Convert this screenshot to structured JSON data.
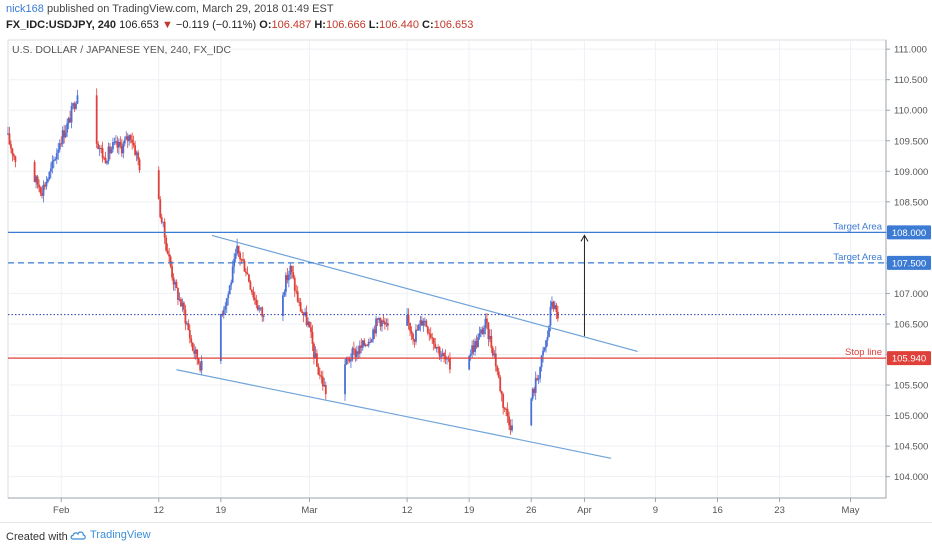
{
  "header": {
    "author": "nick168",
    "published_text": "published on TradingView.com, March 29, 2018 01:49 EST",
    "symbol": "FX_IDC:USDJPY, 240",
    "last_price": "106.653",
    "change_arrow": "▼",
    "change": "−0.119 (−0.11%)",
    "o_label": "O:",
    "o_value": "106.487",
    "h_label": "H:",
    "h_value": "106.666",
    "l_label": "L:",
    "l_value": "106.440",
    "c_label": "C:",
    "c_value": "106.653"
  },
  "footer": {
    "created_with": "Created with",
    "brand": "TradingView"
  },
  "colors": {
    "up": "#4a6fd6",
    "down": "#e0403a",
    "trendline": "#6fa3d9",
    "target": "#3b7bd4",
    "stop": "#e0403a",
    "price_line": "#2a3fb0",
    "grid": "#eef1f5"
  },
  "chart_data": {
    "type": "candlestick",
    "title": "U.S. DOLLAR / JAPANESE YEN, 240, FX_IDC",
    "ylim": [
      103.65,
      111.15
    ],
    "y_ticks": [
      "111.000",
      "110.500",
      "110.000",
      "109.500",
      "109.000",
      "108.500",
      "108.000",
      "107.500",
      "107.000",
      "106.500",
      "106.000",
      "105.500",
      "105.000",
      "104.500",
      "104.000"
    ],
    "y_tick_values": [
      111.0,
      110.5,
      110.0,
      109.5,
      109.0,
      108.5,
      108.0,
      107.5,
      107.0,
      106.5,
      106.0,
      105.5,
      105.0,
      104.5,
      104.0
    ],
    "x_ticks": [
      {
        "label": "Feb",
        "date": "2018-02-01"
      },
      {
        "label": "12",
        "date": "2018-02-12"
      },
      {
        "label": "19",
        "date": "2018-02-19"
      },
      {
        "label": "Mar",
        "date": "2018-03-01"
      },
      {
        "label": "12",
        "date": "2018-03-12"
      },
      {
        "label": "19",
        "date": "2018-03-19"
      },
      {
        "label": "26",
        "date": "2018-03-26"
      },
      {
        "label": "Apr",
        "date": "2018-04-01"
      },
      {
        "label": "9",
        "date": "2018-04-09"
      },
      {
        "label": "16",
        "date": "2018-04-16"
      },
      {
        "label": "23",
        "date": "2018-04-23"
      },
      {
        "label": "May",
        "date": "2018-05-01"
      }
    ],
    "horizontal_levels": [
      {
        "label": "Target Area",
        "value": 108.0,
        "price_label": "108.000",
        "style": "solid",
        "color": "#3b7bd4"
      },
      {
        "label": "Target Area",
        "value": 107.5,
        "price_label": "107.500",
        "style": "dashed",
        "color": "#3b7bd4"
      },
      {
        "label": "Stop line",
        "value": 105.94,
        "price_label": "105.940",
        "style": "solid",
        "color": "#e0403a"
      }
    ],
    "current_price": {
      "value": 106.653,
      "style": "dotted",
      "color": "#2a3fb0"
    },
    "trendlines": [
      {
        "from": {
          "date": "2018-02-18",
          "price": 107.95
        },
        "to": {
          "date": "2018-04-07",
          "price": 106.05
        }
      },
      {
        "from": {
          "date": "2018-02-14",
          "price": 105.75
        },
        "to": {
          "date": "2018-04-04",
          "price": 104.3
        }
      }
    ],
    "arrow": {
      "from": {
        "date": "2018-04-01",
        "price": 106.3
      },
      "to": {
        "date": "2018-04-01",
        "price": 107.95
      }
    },
    "series_path": [
      [
        "2018-01-26",
        109.6
      ],
      [
        "2018-01-27",
        109.2
      ],
      [
        "2018-01-28",
        108.6
      ],
      [
        "2018-01-29",
        108.9
      ],
      [
        "2018-01-30",
        108.7
      ],
      [
        "2018-01-31",
        109.0
      ],
      [
        "2018-02-01",
        109.5
      ],
      [
        "2018-02-02",
        109.8
      ],
      [
        "2018-02-03",
        110.3
      ],
      [
        "2018-02-04",
        110.1
      ],
      [
        "2018-02-05",
        109.6
      ],
      [
        "2018-02-06",
        109.2
      ],
      [
        "2018-02-07",
        109.4
      ],
      [
        "2018-02-08",
        109.4
      ],
      [
        "2018-02-09",
        109.6
      ],
      [
        "2018-02-10",
        109.1
      ],
      [
        "2018-02-11",
        108.7
      ],
      [
        "2018-02-12",
        108.6
      ],
      [
        "2018-02-13",
        107.8
      ],
      [
        "2018-02-14",
        107.1
      ],
      [
        "2018-02-15",
        106.7
      ],
      [
        "2018-02-16",
        106.1
      ],
      [
        "2018-02-17",
        105.8
      ],
      [
        "2018-02-18",
        106.3
      ],
      [
        "2018-02-19",
        106.6
      ],
      [
        "2018-02-20",
        107.0
      ],
      [
        "2018-02-21",
        107.7
      ],
      [
        "2018-02-22",
        107.4
      ],
      [
        "2018-02-23",
        106.9
      ],
      [
        "2018-02-24",
        106.6
      ],
      [
        "2018-02-25",
        106.7
      ],
      [
        "2018-02-26",
        107.0
      ],
      [
        "2018-02-27",
        107.4
      ],
      [
        "2018-02-28",
        106.8
      ],
      [
        "2018-03-01",
        106.5
      ],
      [
        "2018-03-02",
        105.8
      ],
      [
        "2018-03-03",
        105.4
      ],
      [
        "2018-03-04",
        105.5
      ],
      [
        "2018-03-05",
        105.8
      ],
      [
        "2018-03-06",
        106.0
      ],
      [
        "2018-03-07",
        106.1
      ],
      [
        "2018-03-08",
        106.3
      ],
      [
        "2018-03-09",
        106.6
      ],
      [
        "2018-03-10",
        106.4
      ],
      [
        "2018-03-11",
        106.8
      ],
      [
        "2018-03-12",
        106.6
      ],
      [
        "2018-03-13",
        106.3
      ],
      [
        "2018-03-14",
        106.6
      ],
      [
        "2018-03-15",
        106.3
      ],
      [
        "2018-03-16",
        106.0
      ],
      [
        "2018-03-17",
        105.8
      ],
      [
        "2018-03-18",
        105.9
      ],
      [
        "2018-03-19",
        106.0
      ],
      [
        "2018-03-20",
        106.2
      ],
      [
        "2018-03-21",
        106.5
      ],
      [
        "2018-03-22",
        106.0
      ],
      [
        "2018-03-23",
        105.2
      ],
      [
        "2018-03-24",
        104.8
      ],
      [
        "2018-03-25",
        104.8
      ],
      [
        "2018-03-26",
        105.2
      ],
      [
        "2018-03-27",
        105.7
      ],
      [
        "2018-03-28",
        106.3
      ],
      [
        "2018-03-28T12:00",
        106.9
      ],
      [
        "2018-03-29",
        106.653
      ]
    ]
  }
}
